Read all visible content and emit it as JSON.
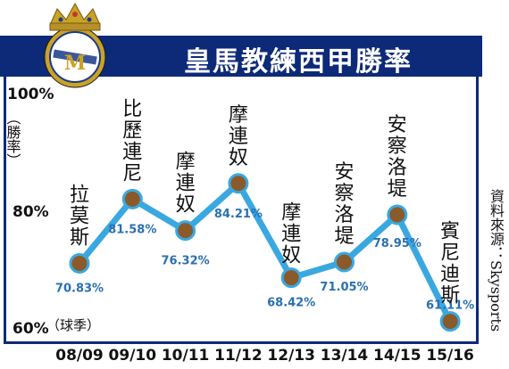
{
  "header": {
    "title": "皇馬教練西甲勝率",
    "logo_icon": "real-madrid-crest-icon",
    "band_color": "#0d2a78"
  },
  "source": "資料來源：Skysports",
  "chart_data": {
    "type": "line",
    "title": "皇馬教練西甲勝率",
    "ylabel": "（勝率）",
    "xlabel": "（球季）",
    "ylim": [
      60,
      100
    ],
    "yticks": [
      "100%",
      "80%",
      "60%"
    ],
    "categories": [
      "08/09",
      "09/10",
      "10/11",
      "11/12",
      "12/13",
      "13/14",
      "14/15",
      "15/16"
    ],
    "coaches": [
      "拉莫斯",
      "比歷連尼",
      "摩連奴",
      "摩連奴",
      "摩連奴",
      "安察洛堤",
      "安察洛堤",
      "賓尼迪斯"
    ],
    "values": [
      70.83,
      81.58,
      76.32,
      84.21,
      68.42,
      71.05,
      78.95,
      61.11
    ],
    "value_labels": [
      "70.83%",
      "81.58%",
      "76.32%",
      "84.21%",
      "68.42%",
      "71.05%",
      "78.95%",
      "61.11%"
    ],
    "line_color": "#3aa8e0",
    "label_color": "#2a6fb0",
    "grid": false
  }
}
